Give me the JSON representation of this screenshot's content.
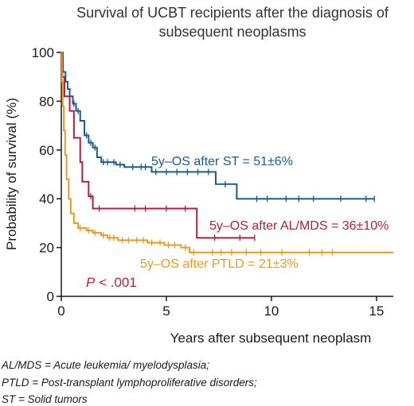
{
  "chart_data": {
    "type": "line",
    "title": [
      "Survival of UCBT recipients after the diagnosis of",
      "subsequent neoplasms"
    ],
    "xlabel": "Years after subsequent neoplasm",
    "ylabel": "Probability of survival (%)",
    "xlim": [
      0,
      15.8
    ],
    "ylim": [
      0,
      100
    ],
    "xticks": [
      0,
      5,
      10,
      15
    ],
    "yticks": [
      0,
      20,
      40,
      60,
      80,
      100
    ],
    "grid": false,
    "series": [
      {
        "name": "ST",
        "color": "#1f5a8c",
        "steps": [
          [
            0,
            100
          ],
          [
            0.08,
            92
          ],
          [
            0.2,
            88
          ],
          [
            0.3,
            85
          ],
          [
            0.4,
            82
          ],
          [
            0.55,
            79
          ],
          [
            0.7,
            76
          ],
          [
            0.9,
            72
          ],
          [
            1.1,
            66
          ],
          [
            1.3,
            63
          ],
          [
            1.5,
            61
          ],
          [
            1.7,
            57
          ],
          [
            1.9,
            55
          ],
          [
            2.3,
            55
          ],
          [
            2.6,
            54
          ],
          [
            3.0,
            53
          ],
          [
            4.3,
            51
          ],
          [
            7.3,
            51
          ],
          [
            7.35,
            46
          ],
          [
            8.3,
            46
          ],
          [
            8.35,
            40
          ],
          [
            14.9,
            40
          ]
        ],
        "censor_x": [
          0.6,
          0.8,
          1.2,
          1.4,
          1.6,
          2.0,
          2.2,
          2.5,
          2.8,
          3.4,
          3.8,
          4.0,
          4.5,
          5.0,
          5.5,
          6.0,
          6.5,
          7.0,
          7.8,
          9.3,
          9.8,
          10.7,
          11.3,
          12.0,
          13.3,
          14.5,
          14.9
        ],
        "annotation": "5y–OS after ST = 51±6%"
      },
      {
        "name": "AL/MDS",
        "color": "#b01f3c",
        "steps": [
          [
            0,
            100
          ],
          [
            0.05,
            90
          ],
          [
            0.15,
            82
          ],
          [
            0.4,
            76
          ],
          [
            0.6,
            65
          ],
          [
            0.9,
            55
          ],
          [
            1.0,
            47
          ],
          [
            1.3,
            41
          ],
          [
            1.5,
            36
          ],
          [
            6.4,
            36
          ],
          [
            6.45,
            24
          ],
          [
            9.2,
            24
          ]
        ],
        "censor_x": [
          1.4,
          1.8,
          3.5,
          4.0,
          5.0,
          5.9,
          7.3,
          8.5,
          9.2
        ],
        "annotation": "5y–OS after AL/MDS = 36±10%"
      },
      {
        "name": "PTLD",
        "color": "#e89a21",
        "steps": [
          [
            0,
            100
          ],
          [
            0.03,
            88
          ],
          [
            0.07,
            78
          ],
          [
            0.12,
            68
          ],
          [
            0.18,
            58
          ],
          [
            0.25,
            48
          ],
          [
            0.35,
            40
          ],
          [
            0.45,
            34
          ],
          [
            0.6,
            30
          ],
          [
            0.8,
            28
          ],
          [
            1.2,
            27
          ],
          [
            1.5,
            26
          ],
          [
            1.9,
            25
          ],
          [
            2.2,
            24
          ],
          [
            2.7,
            23
          ],
          [
            3.5,
            23
          ],
          [
            4.1,
            22
          ],
          [
            4.9,
            21
          ],
          [
            5.4,
            21
          ],
          [
            5.7,
            20
          ],
          [
            6.1,
            18
          ],
          [
            15.8,
            18
          ]
        ],
        "censor_x": [
          0.9,
          1.3,
          1.6,
          2.0,
          2.3,
          2.5,
          2.9,
          3.2,
          3.6,
          3.9,
          4.3,
          4.7,
          5.1,
          5.4,
          5.9,
          6.3,
          7.2,
          7.6,
          8.1,
          8.8,
          9.5,
          10.5,
          11.8,
          12.4,
          12.9
        ],
        "annotation": "5y–OS after PTLD = 21±3%"
      }
    ],
    "pvalue": {
      "italic": "P",
      "rest": " < .001"
    }
  },
  "footnotes": [
    "AL/MDS = Acute leukemia/ myelodysplasia;",
    "PTLD = Post-transplant lymphoproliferative disorders;",
    "ST = Solid tumors"
  ]
}
